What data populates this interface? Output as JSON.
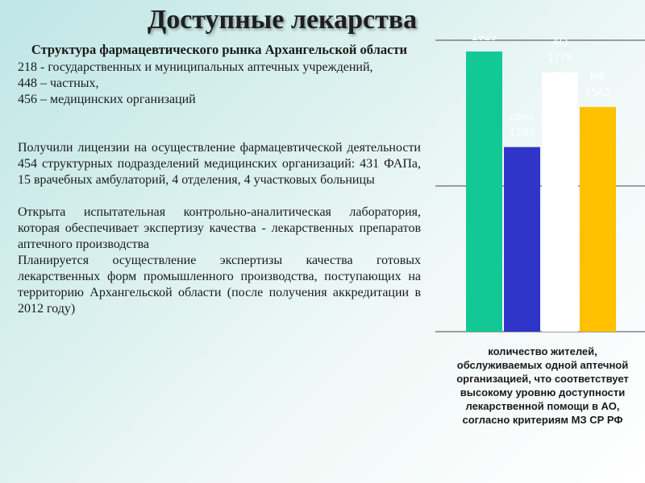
{
  "page": {
    "title": "Доступные лекарства",
    "subtitle": "Структура фармацевтического рынка Архангельской области",
    "stats": [
      "218 -  государственных и муниципальных аптечных учреждений,",
      "448 – частных,",
      "456 – медицинских организаций"
    ],
    "para_license": "Получили лицензии на осуществление фармацевтической деятельности 454 структурных подразделений медицинских организаций: 431 ФАПа, 15 врачебных амбулаторий, 4 отделения, 4 участковых больницы",
    "para_lab": "Открыта испытательная контрольно-аналитическая лаборатория, которая обеспечивает экспертизу качества - лекарственных препаратов аптечного производства",
    "para_plan": "Планируется осуществление экспертизы качества готовых лекарственных форм промышленного производства, поступающих на территорию Архангельской области (после получения аккредитации в 2012 году)"
  },
  "chart_data": {
    "type": "bar",
    "categories": [
      "город",
      "село",
      "АО",
      "РФ"
    ],
    "values": [
      1923,
      1267,
      1779,
      1542
    ],
    "colors": [
      "#12c995",
      "#2f35c9",
      "#ffffff",
      "#ffc000"
    ],
    "label_colors": [
      "#ffffff",
      "#ffffff",
      "#ffffff",
      "#ffffff"
    ],
    "ylim": [
      0,
      2000
    ],
    "grid": true,
    "caption_lines": [
      "количество жителей,",
      "обслуживаемых одной аптечной",
      "организацией, что соответствует",
      "высокому уровню доступности",
      "лекарственной помощи в АО,",
      "согласно критериям МЗ СР РФ"
    ]
  }
}
